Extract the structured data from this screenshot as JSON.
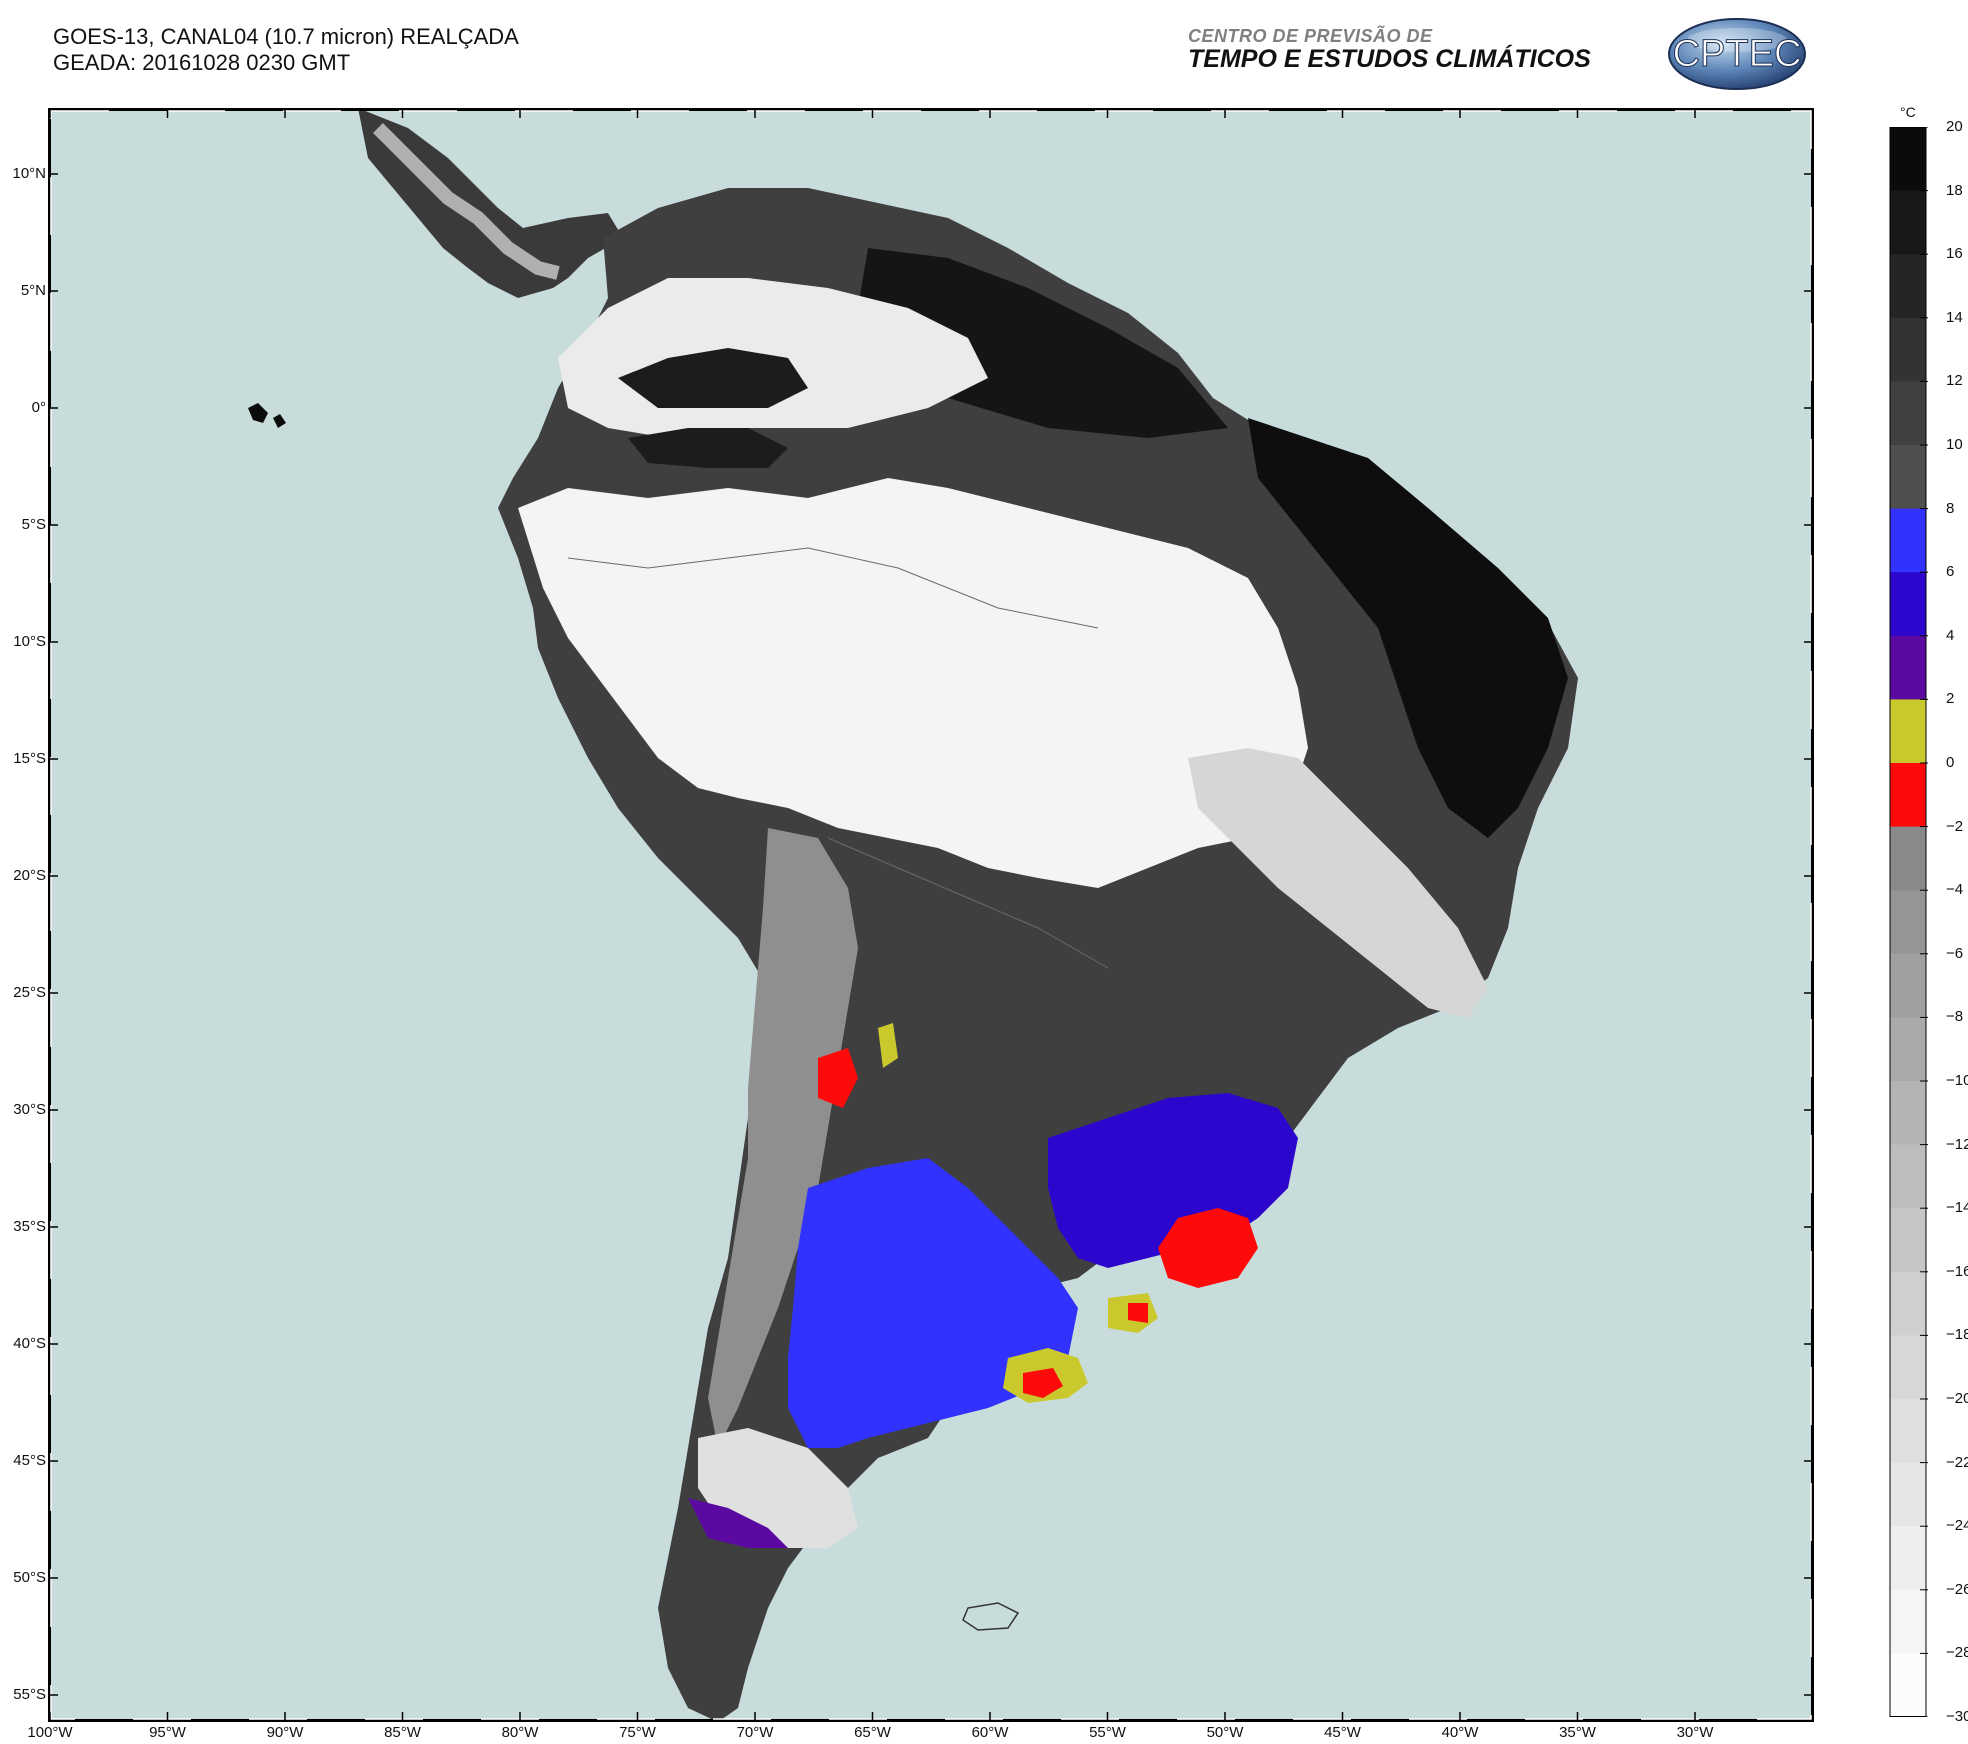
{
  "header": {
    "title_line1": "GOES-13, CANAL04 (10.7 micron) REALÇADA",
    "title_line2": "GEADA: 20161028 0230 GMT",
    "brand_line1": "CENTRO DE PREVISÃO DE",
    "brand_line2": "TEMPO E ESTUDOS CLIMÁTICOS",
    "logo_text": "CPTEC"
  },
  "map": {
    "ocean_color": "#c9dcdc",
    "lat_ticks": [
      "10°N",
      "5°N",
      "0°",
      "5°S",
      "10°S",
      "15°S",
      "20°S",
      "25°S",
      "30°S",
      "35°S",
      "40°S",
      "45°S",
      "50°S",
      "55°S"
    ],
    "lon_ticks": [
      "100°W",
      "95°W",
      "90°W",
      "85°W",
      "80°W",
      "75°W",
      "70°W",
      "65°W",
      "60°W",
      "55°W",
      "50°W",
      "45°W",
      "40°W",
      "35°W",
      "30°W"
    ]
  },
  "colorbar": {
    "unit": "°C",
    "labels": [
      "20",
      "18",
      "16",
      "14",
      "12",
      "10",
      "8",
      "6",
      "4",
      "2",
      "0",
      "−2",
      "−4",
      "−6",
      "−8",
      "−10",
      "−12",
      "−14",
      "−16",
      "−18",
      "−20",
      "−22",
      "−24",
      "−26",
      "−28",
      "−30"
    ],
    "bins": [
      {
        "from": 18,
        "to": 20,
        "color": "#0b0b0b"
      },
      {
        "from": 16,
        "to": 18,
        "color": "#181818"
      },
      {
        "from": 14,
        "to": 16,
        "color": "#252525"
      },
      {
        "from": 12,
        "to": 14,
        "color": "#333333"
      },
      {
        "from": 10,
        "to": 12,
        "color": "#404040"
      },
      {
        "from": 8,
        "to": 10,
        "color": "#4e4e4e"
      },
      {
        "from": 6,
        "to": 8,
        "color": "#3232ff"
      },
      {
        "from": 4,
        "to": 6,
        "color": "#2c06cc"
      },
      {
        "from": 2,
        "to": 4,
        "color": "#5a0aa0"
      },
      {
        "from": 0,
        "to": 2,
        "color": "#c9c92e"
      },
      {
        "from": -2,
        "to": 0,
        "color": "#ff0a0a"
      },
      {
        "from": -4,
        "to": -2,
        "color": "#8a8a8a"
      },
      {
        "from": -6,
        "to": -4,
        "color": "#959595"
      },
      {
        "from": -8,
        "to": -6,
        "color": "#a0a0a0"
      },
      {
        "from": -10,
        "to": -8,
        "color": "#aaaaaa"
      },
      {
        "from": -12,
        "to": -10,
        "color": "#b4b4b4"
      },
      {
        "from": -14,
        "to": -12,
        "color": "#bdbdbd"
      },
      {
        "from": -16,
        "to": -14,
        "color": "#c6c6c6"
      },
      {
        "from": -18,
        "to": -16,
        "color": "#cfcfcf"
      },
      {
        "from": -20,
        "to": -18,
        "color": "#d7d7d7"
      },
      {
        "from": -22,
        "to": -20,
        "color": "#dfdfdf"
      },
      {
        "from": -24,
        "to": -22,
        "color": "#e6e6e6"
      },
      {
        "from": -26,
        "to": -24,
        "color": "#eeeeee"
      },
      {
        "from": -28,
        "to": -26,
        "color": "#f5f5f5"
      },
      {
        "from": -30,
        "to": -28,
        "color": "#fcfcfc"
      }
    ]
  }
}
